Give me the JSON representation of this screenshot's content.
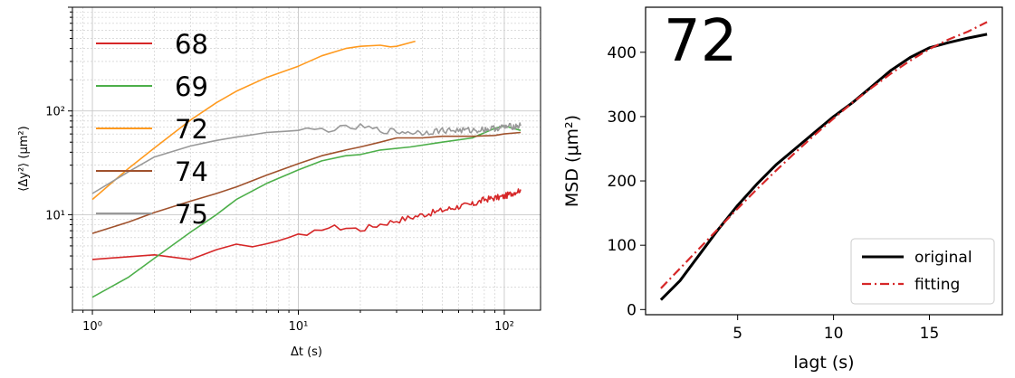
{
  "chart_data": [
    {
      "type": "line",
      "xscale": "log",
      "yscale": "log",
      "xlim": [
        0.8,
        150
      ],
      "ylim": [
        1.2,
        1000
      ],
      "xlabel": "Δt (s)",
      "ylabel": "⟨Δy²⟩ (μm²)",
      "grid": true,
      "legend_placement": "left",
      "x_ticks": [
        {
          "value": 1,
          "label": "10⁰"
        },
        {
          "value": 10,
          "label": "10¹"
        },
        {
          "value": 100,
          "label": "10²"
        }
      ],
      "y_ticks": [
        {
          "value": 10,
          "label": "10¹"
        },
        {
          "value": 100,
          "label": "10²"
        }
      ],
      "series": [
        {
          "name": "68",
          "color": "#d62728",
          "noisy": true,
          "points": [
            [
              1,
              3.7
            ],
            [
              2,
              4.1
            ],
            [
              3,
              3.7
            ],
            [
              4,
              4.6
            ],
            [
              5,
              5.2
            ],
            [
              6,
              4.9
            ],
            [
              8,
              5.6
            ],
            [
              10,
              6.5
            ],
            [
              11,
              6.0
            ],
            [
              13,
              7.5
            ],
            [
              17,
              7.5
            ],
            [
              20,
              7.2
            ],
            [
              25,
              8.1
            ],
            [
              30,
              8.8
            ],
            [
              40,
              10
            ],
            [
              50,
              11
            ],
            [
              60,
              12
            ],
            [
              70,
              12.5
            ],
            [
              80,
              14
            ],
            [
              100,
              15
            ],
            [
              120,
              17.5
            ]
          ]
        },
        {
          "name": "69",
          "color": "#4daf4a",
          "noisy": false,
          "points": [
            [
              1,
              1.6
            ],
            [
              1.5,
              2.5
            ],
            [
              2,
              3.8
            ],
            [
              3,
              6.8
            ],
            [
              4,
              10
            ],
            [
              5,
              14
            ],
            [
              7,
              20
            ],
            [
              10,
              27
            ],
            [
              13,
              33
            ],
            [
              17,
              37
            ],
            [
              20,
              38
            ],
            [
              25,
              42
            ],
            [
              35,
              45
            ],
            [
              50,
              50
            ],
            [
              70,
              55
            ],
            [
              90,
              68
            ],
            [
              100,
              72
            ],
            [
              120,
              65
            ]
          ]
        },
        {
          "name": "72",
          "color": "#ff9a1f",
          "noisy": false,
          "points": [
            [
              1,
              14
            ],
            [
              1.5,
              28
            ],
            [
              2,
              44
            ],
            [
              3,
              82
            ],
            [
              4,
              120
            ],
            [
              5,
              155
            ],
            [
              7,
              210
            ],
            [
              10,
              270
            ],
            [
              13,
              340
            ],
            [
              17,
              400
            ],
            [
              20,
              420
            ],
            [
              25,
              430
            ],
            [
              28,
              415
            ],
            [
              30,
              420
            ],
            [
              37,
              470
            ]
          ]
        },
        {
          "name": "74",
          "color": "#a0522d",
          "noisy": false,
          "points": [
            [
              1,
              6.6
            ],
            [
              1.5,
              8.5
            ],
            [
              2,
              10.5
            ],
            [
              3,
              13.5
            ],
            [
              4,
              16
            ],
            [
              5,
              18.5
            ],
            [
              7,
              24
            ],
            [
              10,
              31
            ],
            [
              13,
              37
            ],
            [
              17,
              42
            ],
            [
              20,
              45
            ],
            [
              25,
              50
            ],
            [
              30,
              55
            ],
            [
              40,
              55
            ],
            [
              50,
              57
            ],
            [
              70,
              57
            ],
            [
              90,
              58
            ],
            [
              100,
              60
            ],
            [
              120,
              62
            ]
          ]
        },
        {
          "name": "75",
          "color": "#999999",
          "noisy": true,
          "points": [
            [
              1,
              16
            ],
            [
              1.5,
              26
            ],
            [
              2,
              36
            ],
            [
              3,
              46
            ],
            [
              4,
              52
            ],
            [
              5,
              56
            ],
            [
              7,
              62
            ],
            [
              10,
              65
            ],
            [
              13,
              66
            ],
            [
              17,
              68
            ],
            [
              20,
              70
            ],
            [
              25,
              65
            ],
            [
              30,
              63
            ],
            [
              40,
              62
            ],
            [
              50,
              65
            ],
            [
              70,
              65
            ],
            [
              90,
              68
            ],
            [
              100,
              70
            ],
            [
              120,
              72
            ]
          ]
        }
      ]
    },
    {
      "type": "line",
      "title": "72",
      "xlabel": "lagt (s)",
      "ylabel": "MSD (μm²)",
      "xlim": [
        0.2,
        18.8
      ],
      "ylim": [
        -8,
        470
      ],
      "x_ticks": [
        5,
        10,
        15
      ],
      "y_ticks": [
        0,
        100,
        200,
        300,
        400
      ],
      "grid": false,
      "legend_placement": "bottom-right",
      "series": [
        {
          "name": "original",
          "color": "#000000",
          "style": "solid",
          "x": [
            1,
            2,
            3,
            4,
            5,
            6,
            7,
            8,
            9,
            10,
            11,
            12,
            13,
            14,
            15,
            16,
            17,
            18
          ],
          "y": [
            15,
            45,
            85,
            125,
            162,
            195,
            225,
            250,
            275,
            300,
            322,
            347,
            372,
            392,
            407,
            415,
            422,
            428
          ]
        },
        {
          "name": "fitting",
          "color": "#d62728",
          "style": "dashdot",
          "x": [
            1,
            2,
            3,
            4,
            5,
            6,
            7,
            8,
            9,
            10,
            11,
            12,
            13,
            14,
            15,
            16,
            17,
            18
          ],
          "y": [
            33,
            64,
            95,
            126,
            157,
            187,
            216,
            244,
            271,
            297,
            322,
            345,
            367,
            387,
            405,
            420,
            432,
            447
          ]
        }
      ]
    }
  ]
}
